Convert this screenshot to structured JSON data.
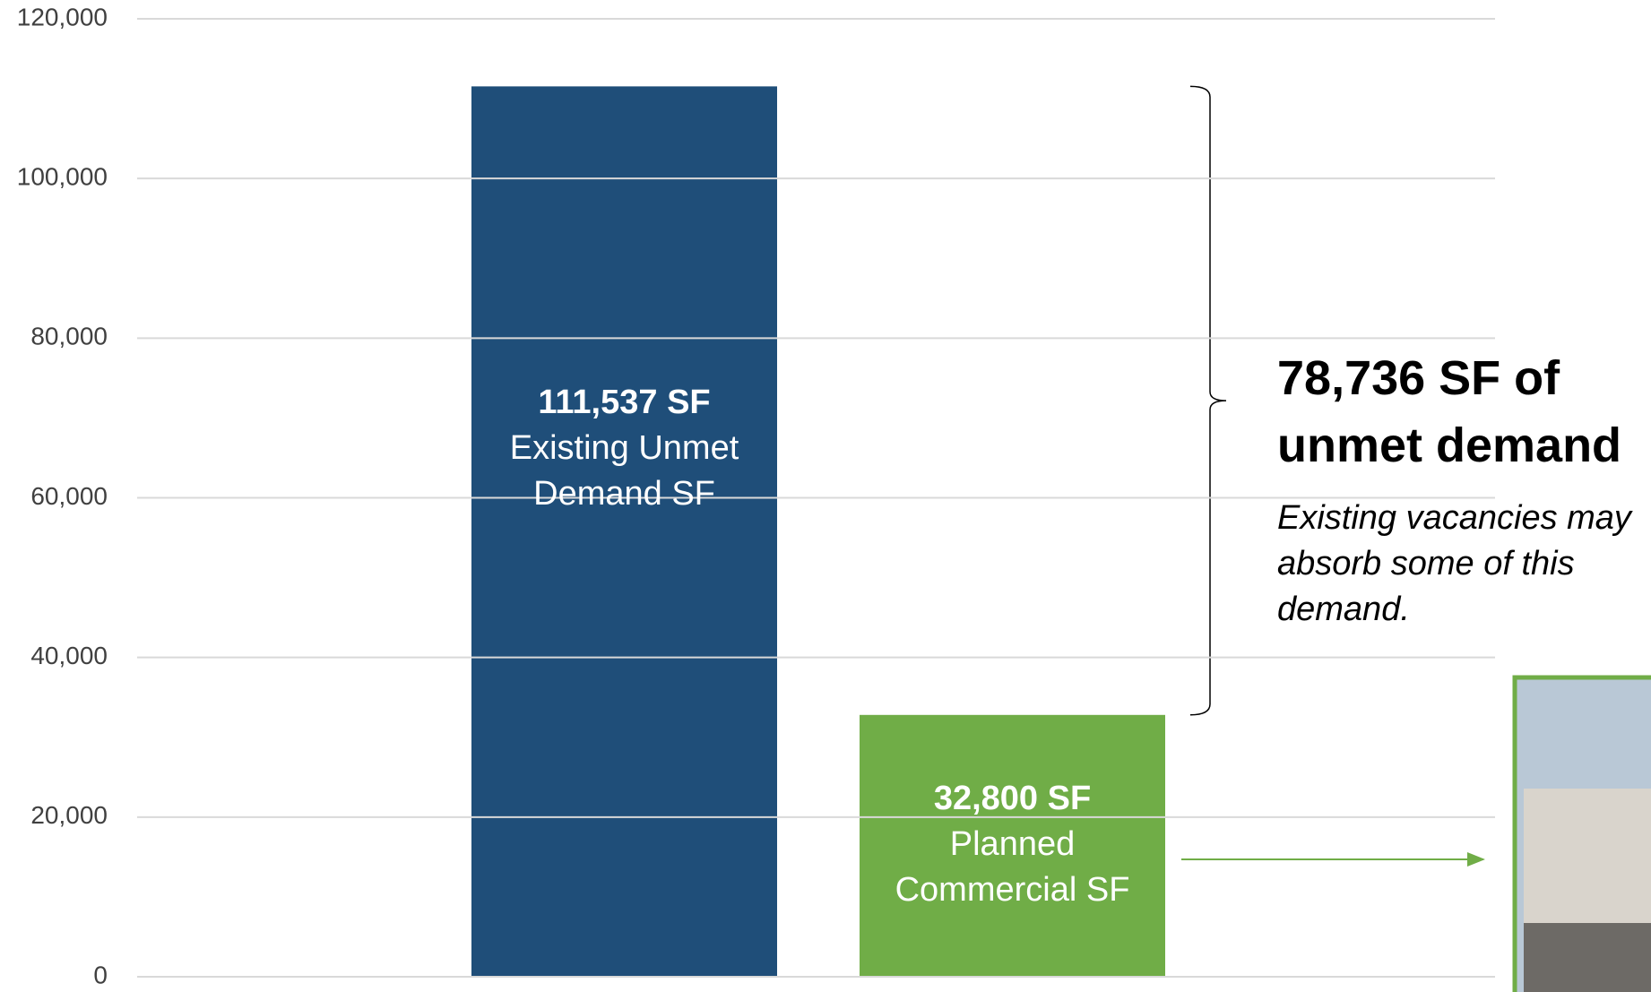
{
  "chart_data": {
    "type": "bar",
    "categories": [
      "Existing Unmet Demand SF",
      "Planned Commercial SF"
    ],
    "values": [
      111537,
      32800
    ],
    "value_labels": [
      "111,537 SF",
      "32,800 SF"
    ],
    "colors": [
      "#1f4e79",
      "#70ad47"
    ],
    "ylim": [
      0,
      120000
    ],
    "yticks": [
      0,
      {
        "value": 20000,
        "label": "20,000"
      },
      {
        "value": 40000,
        "label": "40,000"
      },
      {
        "value": 60000,
        "label": "60,000"
      },
      {
        "value": 80000,
        "label": "80,000"
      },
      {
        "value": 100000,
        "label": "100,000"
      },
      {
        "value": 120000,
        "label": "120,000"
      }
    ],
    "grid": true,
    "annotation": {
      "title": "78,736 SF of unmet demand",
      "note": "Existing vacancies may absorb some of this demand."
    }
  }
}
